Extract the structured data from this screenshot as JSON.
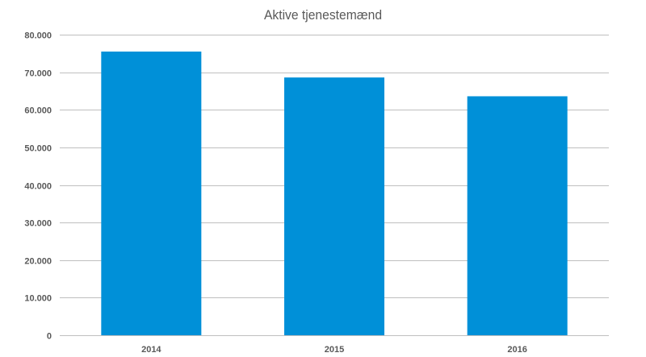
{
  "chart_data": {
    "type": "bar",
    "title": "Aktive tjenestemænd",
    "xlabel": "",
    "ylabel": "",
    "categories": [
      "2014",
      "2015",
      "2016"
    ],
    "values": [
      75500,
      68600,
      63600
    ],
    "ylim": [
      0,
      80000
    ],
    "yticks": [
      {
        "value": 0,
        "label": "0"
      },
      {
        "value": 10000,
        "label": "10.000"
      },
      {
        "value": 20000,
        "label": "20.000"
      },
      {
        "value": 30000,
        "label": "30.000"
      },
      {
        "value": 40000,
        "label": "40.000"
      },
      {
        "value": 50000,
        "label": "50.000"
      },
      {
        "value": 60000,
        "label": "60.000"
      },
      {
        "value": 70000,
        "label": "70.000"
      },
      {
        "value": 80000,
        "label": "80.000"
      }
    ],
    "grid": true,
    "legend": "none",
    "colors": {
      "bar": "#0090d8",
      "grid": "#bfbfbf",
      "text": "#595959"
    }
  }
}
